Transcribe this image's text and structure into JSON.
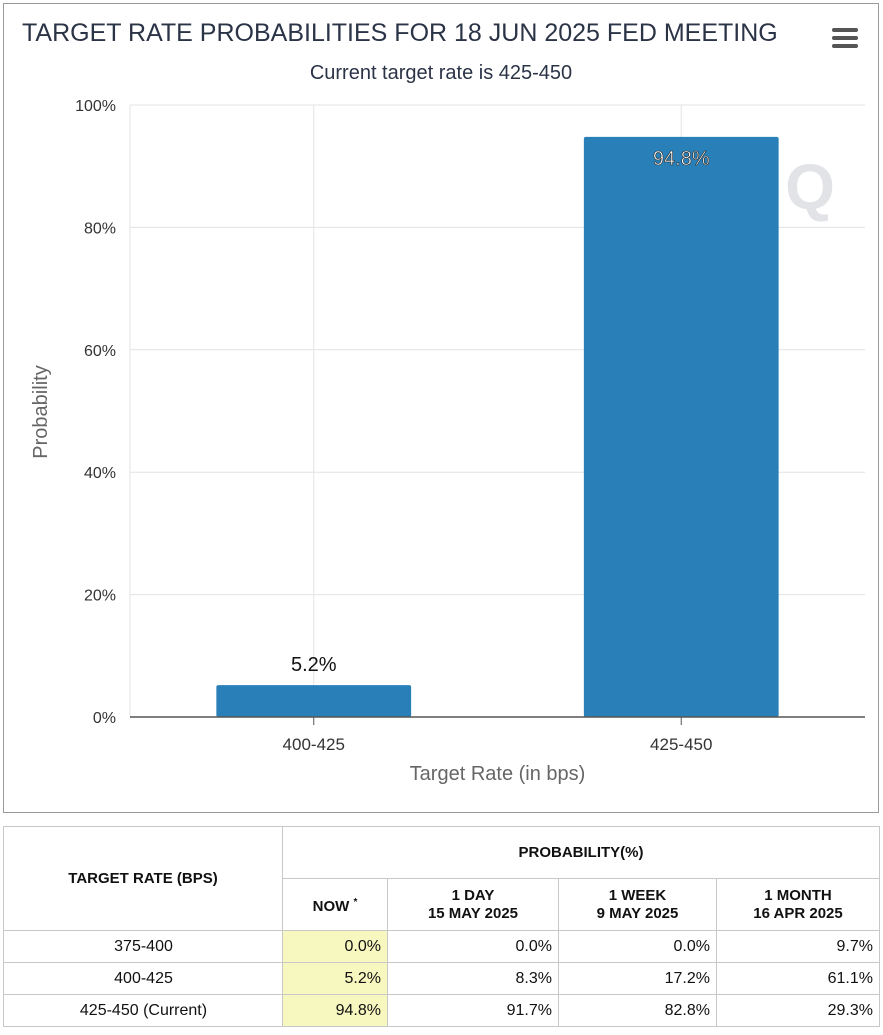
{
  "header": {
    "title": "TARGET RATE PROBABILITIES FOR 18 JUN 2025 FED MEETING",
    "subtitle": "Current target rate is 425-450",
    "menu_icon": "hamburger-menu-icon"
  },
  "colors": {
    "bar": "#2980b9",
    "title_text": "#2b3447",
    "now_highlight": "#f7f7c0"
  },
  "chart_data": {
    "type": "bar",
    "title": "TARGET RATE PROBABILITIES FOR 18 JUN 2025 FED MEETING",
    "subtitle": "Current target rate is 425-450",
    "categories": [
      "400-425",
      "425-450"
    ],
    "values": [
      5.2,
      94.8
    ],
    "data_labels": [
      "5.2%",
      "94.8%"
    ],
    "xlabel": "Target Rate (in bps)",
    "ylabel": "Probability",
    "ylim": [
      0,
      100
    ],
    "yticks": [
      0,
      20,
      40,
      60,
      80,
      100
    ],
    "ytick_labels": [
      "0%",
      "20%",
      "40%",
      "60%",
      "80%",
      "100%"
    ],
    "grid": true,
    "watermark": "Q"
  },
  "table": {
    "rate_header": "TARGET RATE (BPS)",
    "prob_header": "PROBABILITY(%)",
    "now_label": "NOW",
    "now_mark": "*",
    "day_label": "1 DAY",
    "day_date": "15 MAY 2025",
    "week_label": "1 WEEK",
    "week_date": "9 MAY 2025",
    "month_label": "1 MONTH",
    "month_date": "16 APR 2025",
    "rows": [
      {
        "rate": "375-400",
        "now": "0.0%",
        "day": "0.0%",
        "week": "0.0%",
        "month": "9.7%"
      },
      {
        "rate": "400-425",
        "now": "5.2%",
        "day": "8.3%",
        "week": "17.2%",
        "month": "61.1%"
      },
      {
        "rate": "425-450 (Current)",
        "now": "94.8%",
        "day": "91.7%",
        "week": "82.8%",
        "month": "29.3%"
      }
    ]
  }
}
